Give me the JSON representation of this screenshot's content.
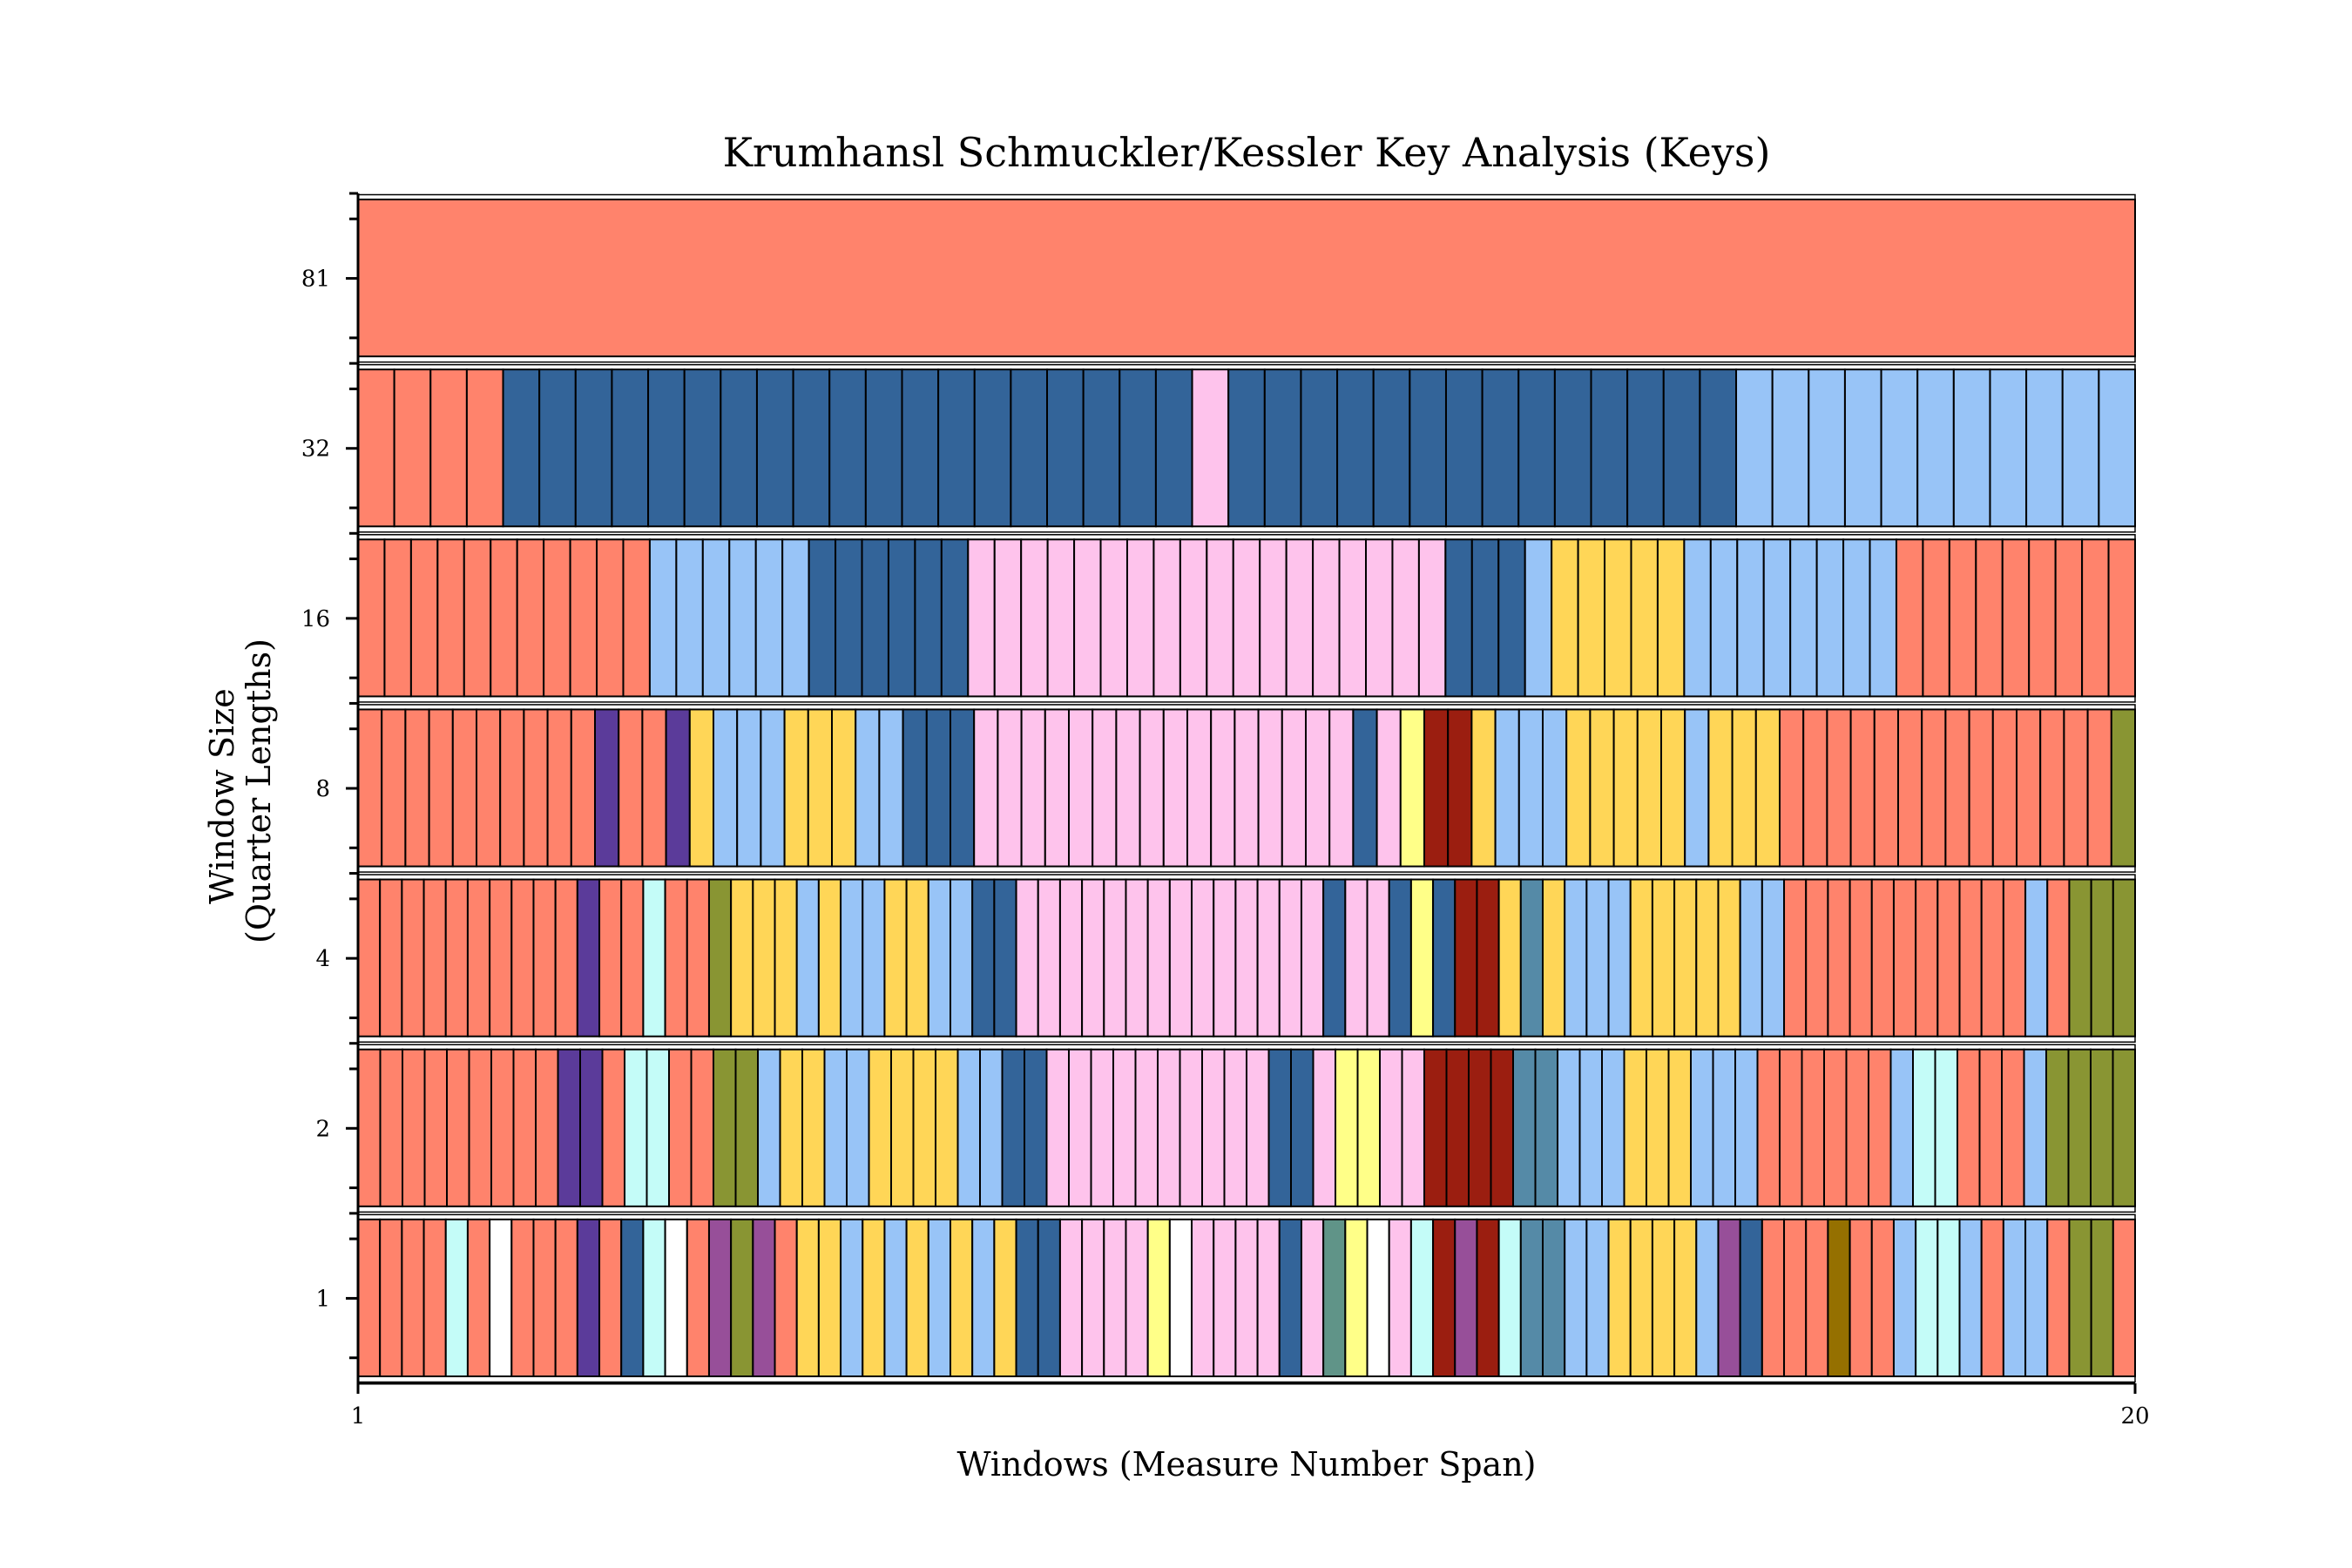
{
  "chart_data": {
    "type": "heatmap",
    "title": "Krumhansl Schmuckler/Kessler Key Analysis (Keys)",
    "xlabel": "Windows (Measure Number Span)",
    "ylabel_lines": [
      "Window Size",
      "(Quarter Lengths)"
    ],
    "x_ticks": [
      "1",
      "20"
    ],
    "colors": {
      "S": "#ff836c",
      "D": "#336499",
      "L": "#98c4f7",
      "P": "#fec3ec",
      "Y": "#ffd657",
      "V": "#5b3b9a",
      "R": "#9b1e10",
      "G": "#899533",
      "C": "#c4fcf8",
      "Q": "#ffff88",
      "T": "#558aa7",
      "M": "#974f99",
      "W": "#ffffff",
      "B": "#957000",
      "E": "#609488"
    },
    "rows": [
      {
        "label": "81",
        "keys": "S"
      },
      {
        "label": "32",
        "keys": "SSSSDDDDDDDDDDDDDDDDDDDPDDDDDDDDDDDDDDLLLLLLLLLLL"
      },
      {
        "label": "16",
        "keys": "SSSSSSSSSSSLLLLLLDDDDDDPPPPPPPPPPPPPPPPPPDDDLYYYYYLLLLLLLLSSSSSSSSS"
      },
      {
        "label": "8",
        "keys": "SSSSSSSSSSVSSVYLLLYYYLLDDDPPPPPPPPPPPPPPPPDPQRRYLLLYYYYYLYYYSSSSSSSSSSSSSSG"
      },
      {
        "label": "4",
        "keys": "SSSSSSSSSSVSSCSSGYYYLYLLYYLLDDPPPPPPPPPPPPPPDPPDQDRRYTYLLLYYYYYLLSSSSSSSSSSSLSGGG"
      },
      {
        "label": "2",
        "keys": "SSSSSSSSSVVSCCSSGGLYYLLYYYYLLDDPPPPPPPPPPDDPQQPPRRRRTTLLLYYYLLLSSSSSSLCCSSSLGGGG"
      },
      {
        "label": "1",
        "keys": "SSSSCSWSSSVSDCWSMGMSYYLYLYLYLYDDPPPPQWPPPPDPEQWPCRMRCTTLLYYYYLMDSSSBSSLCCLSLLSGGS"
      }
    ]
  }
}
